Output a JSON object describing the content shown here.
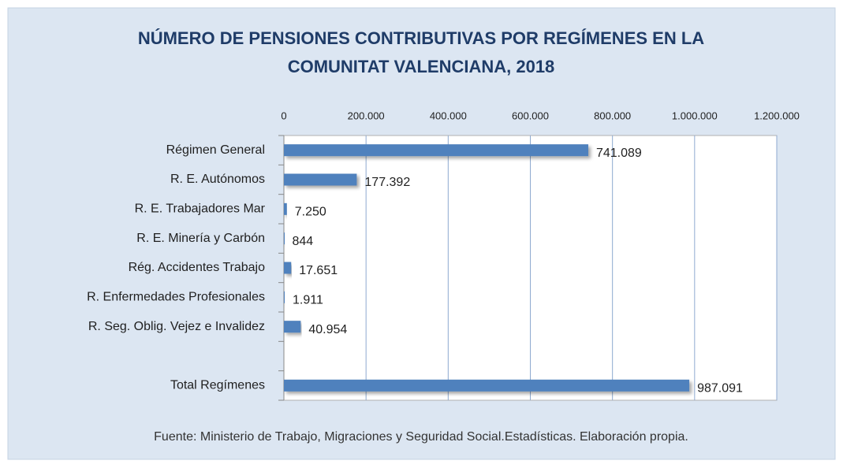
{
  "chart_data": {
    "type": "bar",
    "orientation": "horizontal",
    "title": [
      "NÚMERO DE PENSIONES CONTRIBUTIVAS POR REGÍMENES EN LA",
      "COMUNITAT VALENCIANA, 2018"
    ],
    "categories": [
      "Régimen General",
      "R. E. Autónomos",
      "R. E. Trabajadores Mar",
      "R. E. Minería y Carbón",
      "Rég. Accidentes Trabajo",
      "R. Enfermedades Profesionales",
      "R. Seg. Oblig. Vejez e Invalidez",
      null,
      "Total Regímenes"
    ],
    "values": [
      741089,
      177392,
      7250,
      844,
      17651,
      1911,
      40954,
      null,
      987091
    ],
    "value_labels": [
      "741.089",
      "177.392",
      "7.250",
      "844",
      "17.651",
      "1.911",
      "40.954",
      null,
      "987.091"
    ],
    "color": "#4f81bd",
    "xlim": [
      0,
      1200000
    ],
    "xticks": [
      0,
      {
        "value": 200000,
        "label": "200.000"
      },
      {
        "value": 400000,
        "label": "400.000"
      },
      {
        "value": 600000,
        "label": "600.000"
      },
      {
        "value": 800000,
        "label": "800.000"
      },
      {
        "value": 1000000,
        "label": "1.000.000"
      },
      {
        "value": 1200000,
        "label": "1.200.000"
      }
    ],
    "grid": true,
    "source": "Fuente: Ministerio de Trabajo, Migraciones y Seguridad Social.Estadísticas. Elaboración propia."
  }
}
